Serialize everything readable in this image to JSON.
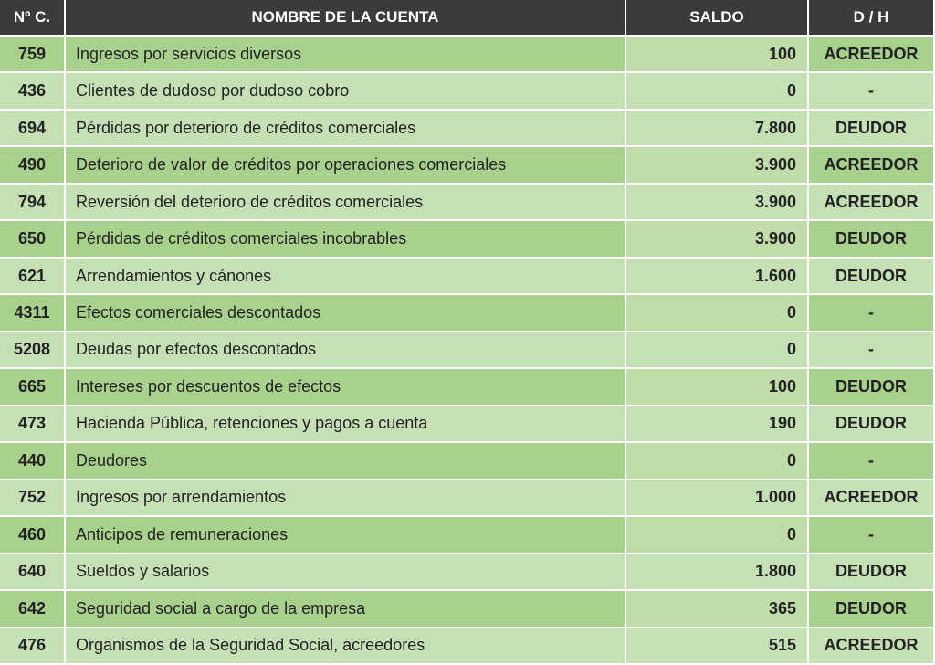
{
  "table": {
    "header": [
      "Nº C.",
      "NOMBRE DE LA CUENTA",
      "SALDO",
      "D / H"
    ],
    "rows": [
      [
        "759",
        "Ingresos por servicios diversos",
        "100",
        "ACREEDOR"
      ],
      [
        "436",
        "Clientes de dudoso por dudoso cobro",
        "0",
        "-"
      ],
      [
        "694",
        "Pérdidas por deterioro de créditos comerciales",
        "7.800",
        "DEUDOR"
      ],
      [
        "490",
        "Deterioro de valor de créditos por operaciones comerciales",
        "3.900",
        "ACREEDOR"
      ],
      [
        "794",
        "Reversión del deterioro de créditos comerciales",
        "3.900",
        "ACREEDOR"
      ],
      [
        "650",
        "Pérdidas de créditos comerciales incobrables",
        "3.900",
        "DEUDOR"
      ],
      [
        "621",
        "Arrendamientos y cánones",
        "1.600",
        "DEUDOR"
      ],
      [
        "4311",
        "Efectos comerciales descontados",
        "0",
        "-"
      ],
      [
        "5208",
        "Deudas por efectos descontados",
        "0",
        "-"
      ],
      [
        "665",
        "Intereses por descuentos de efectos",
        "100",
        "DEUDOR"
      ],
      [
        "473",
        "Hacienda Pública, retenciones y pagos a cuenta",
        "190",
        "DEUDOR"
      ],
      [
        "440",
        "Deudores",
        "0",
        "-"
      ],
      [
        "752",
        "Ingresos por arrendamientos",
        "1.000",
        "ACREEDOR"
      ],
      [
        "460",
        "Anticipos de remuneraciones",
        "0",
        "-"
      ],
      [
        "640",
        "Sueldos y salarios",
        "1.800",
        "DEUDOR"
      ],
      [
        "642",
        "Seguridad social a cargo de la empresa",
        "365",
        "DEUDOR"
      ],
      [
        "476",
        "Organismos de la Seguridad Social, acreedores",
        "515",
        "ACREEDOR"
      ]
    ]
  }
}
